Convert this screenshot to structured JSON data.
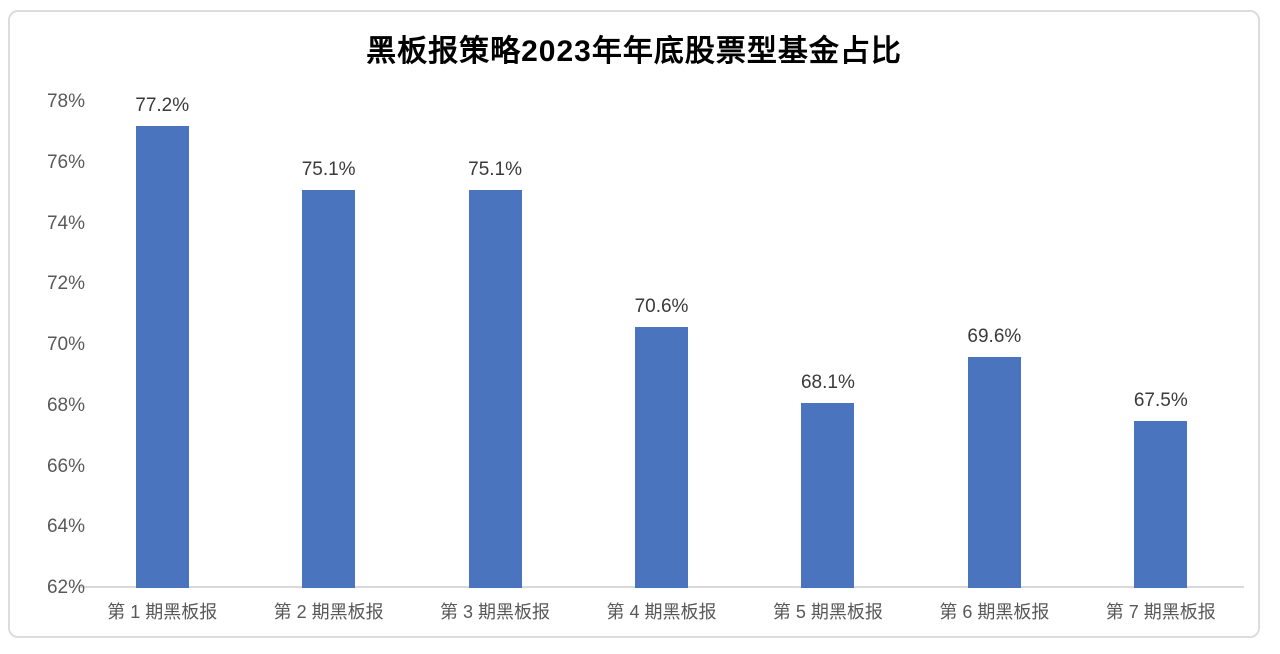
{
  "card": {
    "background": "#ffffff",
    "border_color": "#dcdcdc"
  },
  "chart_data": {
    "type": "bar",
    "title": "黑板报策略2023年年底股票型基金占比",
    "categories": [
      "第 1 期黑板报",
      "第 2 期黑板报",
      "第 3 期黑板报",
      "第 4 期黑板报",
      "第 5 期黑板报",
      "第 6 期黑板报",
      "第 7 期黑板报"
    ],
    "values": [
      77.2,
      75.1,
      75.1,
      70.6,
      68.1,
      69.6,
      67.5
    ],
    "value_labels": [
      "77.2%",
      "75.1%",
      "75.1%",
      "70.6%",
      "68.1%",
      "69.6%",
      "67.5%"
    ],
    "xlabel": "",
    "ylabel": "",
    "ylim": [
      62,
      78
    ],
    "y_ticks": [
      {
        "value": 78,
        "label": "78%"
      },
      {
        "value": 76,
        "label": "76%"
      },
      {
        "value": 74,
        "label": "74%"
      },
      {
        "value": 72,
        "label": "72%"
      },
      {
        "value": 70,
        "label": "70%"
      },
      {
        "value": 68,
        "label": "68%"
      },
      {
        "value": 66,
        "label": "66%"
      },
      {
        "value": 64,
        "label": "64%"
      },
      {
        "value": 62,
        "label": "62%"
      }
    ],
    "grid": false,
    "legend": "none",
    "bar_color": "#4a74bd",
    "value_label_color": "#3a3a3a",
    "axis_label_color": "#595959",
    "axis_line_color": "#d9d9d9"
  }
}
